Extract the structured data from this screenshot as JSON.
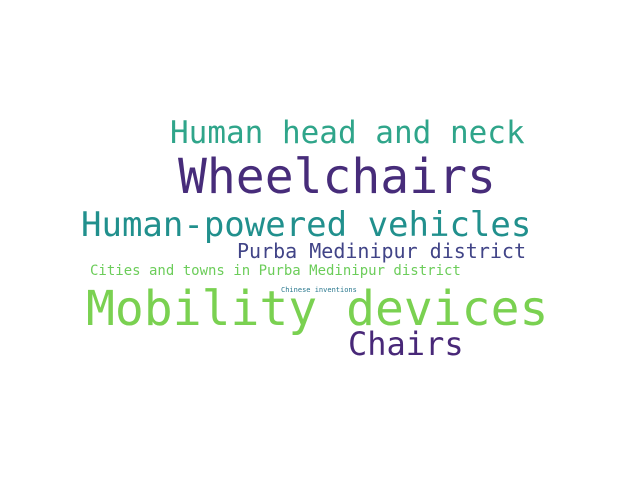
{
  "words": [
    {
      "text": "Wheelchairs",
      "color": "#472c7a"
    },
    {
      "text": "Mobility devices",
      "color": "#7ad151"
    },
    {
      "text": "Human-powered vehicles",
      "color": "#21908d"
    },
    {
      "text": "Human head and neck",
      "color": "#2fa58a"
    },
    {
      "text": "Chairs",
      "color": "#482878"
    },
    {
      "text": "Purba Medinipur district",
      "color": "#414487"
    },
    {
      "text": "Cities and towns in Purba Medinipur district",
      "color": "#6ccd5a"
    },
    {
      "text": "Chinese inventions",
      "color": "#2a788e"
    }
  ],
  "background": "#ffffff"
}
